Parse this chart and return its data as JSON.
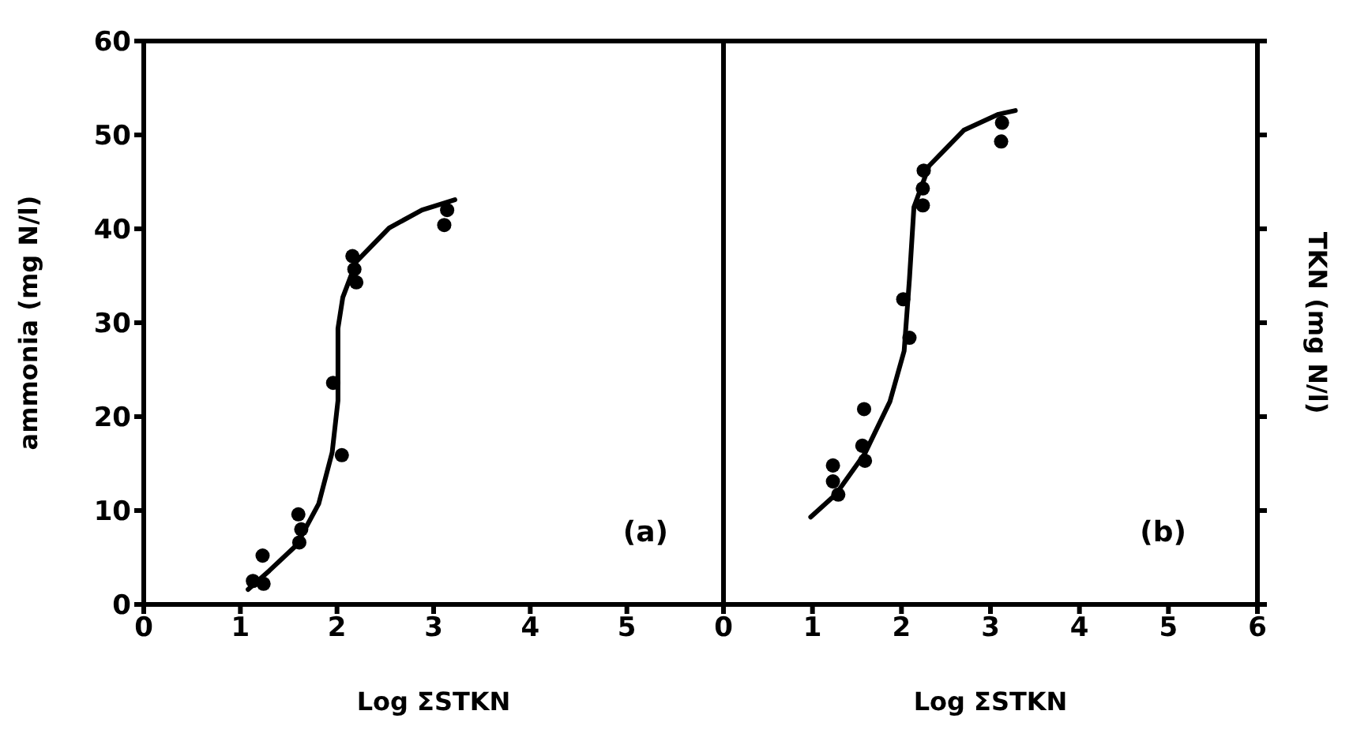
{
  "chart_data": [
    {
      "type": "scatter",
      "xlabel": "Log ΣSTKN",
      "ylabel": "ammonia (mg N/l)",
      "annotations": [
        "(a)"
      ],
      "xlim": [
        0,
        6
      ],
      "xticks": [
        0,
        1,
        2,
        3,
        4,
        5
      ],
      "ylim": [
        0,
        60
      ],
      "yticks": [
        0,
        10,
        20,
        30,
        40,
        50,
        60
      ],
      "series": [
        {
          "marker": "circle",
          "color": "#000000",
          "x": [
            1.23,
            1.13,
            1.24,
            1.6,
            1.61,
            1.63,
            1.96,
            2.05,
            2.16,
            2.2,
            2.18,
            3.11,
            3.14
          ],
          "values": [
            5.2,
            2.5,
            2.2,
            9.6,
            6.6,
            8,
            23.6,
            15.9,
            37.1,
            34.3,
            35.7,
            40.4,
            42
          ]
        },
        {
          "type": "line",
          "color": "#000000",
          "line_style": "solid",
          "x": [
            1.08,
            1.3,
            1.58,
            1.81,
            1.95,
            2.01,
            2.01,
            2.06,
            2.2,
            2.54,
            2.88,
            3.22
          ],
          "values": [
            1.6,
            3.6,
            6.3,
            10.7,
            16.2,
            21.7,
            29.4,
            32.7,
            36.5,
            40.1,
            42,
            43.1
          ]
        }
      ]
    },
    {
      "type": "scatter",
      "xlabel": "Log ΣSTKN",
      "ylabel": "TKN (mg N/l)",
      "annotations": [
        "(b)"
      ],
      "xlim": [
        0,
        6
      ],
      "xticks": [
        0,
        1,
        2,
        3,
        4,
        5,
        6
      ],
      "ylim": [
        0,
        60
      ],
      "yticks": [
        0,
        10,
        20,
        30,
        40,
        50,
        60
      ],
      "tick_labels": "x",
      "series": [
        {
          "marker": "circle",
          "color": "#000000",
          "x": [
            1.23,
            1.23,
            1.29,
            1.58,
            1.56,
            1.59,
            2.02,
            2.09,
            2.25,
            2.24,
            2.24,
            3.12,
            3.13
          ],
          "values": [
            14.8,
            13.1,
            11.7,
            20.8,
            16.9,
            15.3,
            32.5,
            28.4,
            46.2,
            44.3,
            42.5,
            49.3,
            51.3
          ]
        },
        {
          "type": "line",
          "color": "#000000",
          "line_style": "solid",
          "x": [
            0.98,
            1.26,
            1.59,
            1.87,
            2.03,
            2.09,
            2.14,
            2.31,
            2.7,
            3.09,
            3.28
          ],
          "values": [
            9.3,
            11.7,
            16.1,
            21.6,
            27,
            34.7,
            42.3,
            46.7,
            50.5,
            52.2,
            52.6
          ]
        }
      ]
    }
  ]
}
